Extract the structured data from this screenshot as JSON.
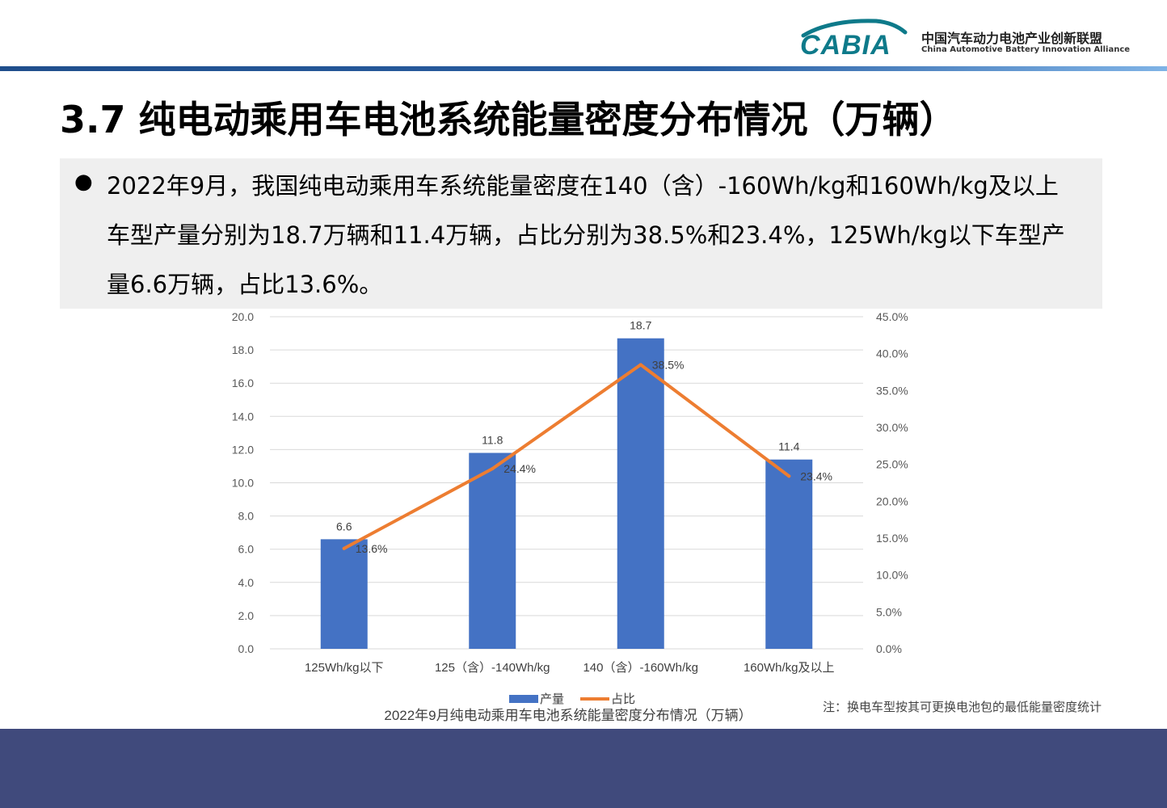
{
  "header": {
    "logo_text": "CABIA",
    "org_cn": "中国汽车动力电池产业创新联盟",
    "org_en": "China Automotive Battery Innovation Alliance",
    "brand_color": "#0e7a8a"
  },
  "page": {
    "title": "3.7 纯电动乘用车电池系统能量密度分布情况（万辆）",
    "summary": "2022年9月，我国纯电动乘用车系统能量密度在140（含）-160Wh/kg和160Wh/kg及以上车型产量分别为18.7万辆和11.4万辆，占比分别为38.5%和23.4%，125Wh/kg以下车型产量6.6万辆，占比13.6%。",
    "note": "注：换电车型按其可更换电池包的最低能量密度统计"
  },
  "chart_data": {
    "type": "bar",
    "title": "2022年9月纯电动乘用车电池系统能量密度分布情况（万辆）",
    "categories": [
      "125Wh/kg以下",
      "125（含）-140Wh/kg",
      "140（含）-160Wh/kg",
      "160Wh/kg及以上"
    ],
    "series": [
      {
        "name": "产量",
        "type": "bar",
        "axis": "left",
        "values": [
          6.6,
          11.8,
          18.7,
          11.4
        ],
        "labels": [
          "6.6",
          "11.8",
          "18.7",
          "11.4"
        ],
        "color": "#4472c4"
      },
      {
        "name": "占比",
        "type": "line",
        "axis": "right",
        "values": [
          13.6,
          24.4,
          38.5,
          23.4
        ],
        "labels": [
          "13.6%",
          "24.4%",
          "38.5%",
          "23.4%"
        ],
        "color": "#ed7d31"
      }
    ],
    "y_left": {
      "min": 0,
      "max": 20,
      "ticks": [
        "0.0",
        "2.0",
        "4.0",
        "6.0",
        "8.0",
        "10.0",
        "12.0",
        "14.0",
        "16.0",
        "18.0",
        "20.0"
      ]
    },
    "y_right": {
      "min": 0,
      "max": 45,
      "ticks": [
        "0.0%",
        "5.0%",
        "10.0%",
        "15.0%",
        "20.0%",
        "25.0%",
        "30.0%",
        "35.0%",
        "40.0%",
        "45.0%"
      ]
    },
    "grid": true,
    "legend_position": "bottom"
  }
}
